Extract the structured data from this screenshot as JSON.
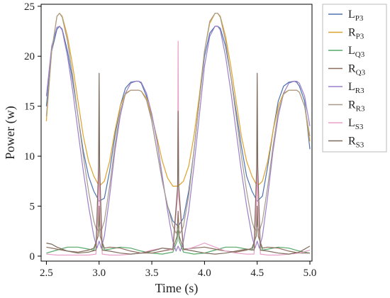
{
  "chart_data": {
    "type": "line",
    "xlabel": "Time (s)",
    "ylabel": "Power (w)",
    "xlim": [
      2.45,
      5.02
    ],
    "ylim": [
      -0.5,
      25.2
    ],
    "xticks": [
      2.5,
      3.0,
      3.5,
      4.0,
      4.5,
      5.0
    ],
    "xtick_labels": [
      "2.5",
      "3.0",
      "3.5",
      "4.0",
      "4.5",
      "5.0"
    ],
    "yticks": [
      0,
      5,
      10,
      15,
      20,
      25
    ],
    "ytick_labels": [
      "0",
      "5",
      "10",
      "15",
      "20",
      "25"
    ],
    "grid": false,
    "legend_position": "right",
    "series": [
      {
        "name": "L",
        "sub": "P3",
        "color": "#4c72b0",
        "x": [
          2.5,
          2.55,
          2.6,
          2.625,
          2.65,
          2.7,
          2.75,
          2.8,
          2.85,
          2.9,
          2.95,
          3.0,
          3.05,
          3.1,
          3.15,
          3.2,
          3.25,
          3.3,
          3.35,
          3.375,
          3.4,
          3.45,
          3.5,
          3.55,
          3.6,
          3.65,
          3.7,
          3.75,
          3.8,
          3.85,
          3.9,
          3.95,
          4.0,
          4.05,
          4.1,
          4.125,
          4.15,
          4.2,
          4.25,
          4.3,
          4.35,
          4.4,
          4.45,
          4.5,
          4.55,
          4.6,
          4.65,
          4.7,
          4.75,
          4.8,
          4.85,
          4.875,
          4.9,
          4.95,
          5.0
        ],
        "y": [
          15.0,
          20.5,
          22.7,
          23.0,
          22.7,
          20.5,
          17.5,
          14.0,
          10.5,
          8.0,
          6.5,
          5.5,
          5.8,
          8.5,
          12.0,
          15.0,
          16.8,
          17.4,
          17.5,
          17.5,
          17.3,
          16.0,
          13.5,
          10.5,
          7.5,
          5.0,
          3.5,
          3.0,
          3.8,
          6.5,
          10.5,
          15.5,
          20.0,
          22.3,
          23.0,
          23.0,
          22.8,
          21.0,
          18.0,
          14.5,
          11.0,
          8.0,
          6.5,
          5.5,
          6.0,
          9.0,
          12.5,
          15.5,
          17.0,
          17.4,
          17.5,
          17.4,
          17.0,
          15.5,
          10.7
        ]
      },
      {
        "name": "R",
        "sub": "P3",
        "color": "#dda22c",
        "x": [
          2.5,
          2.55,
          2.6,
          2.625,
          2.65,
          2.7,
          2.75,
          2.8,
          2.85,
          2.9,
          2.95,
          3.0,
          3.05,
          3.1,
          3.15,
          3.2,
          3.25,
          3.3,
          3.35,
          3.375,
          3.4,
          3.45,
          3.5,
          3.55,
          3.6,
          3.65,
          3.7,
          3.75,
          3.8,
          3.85,
          3.9,
          3.95,
          4.0,
          4.05,
          4.1,
          4.125,
          4.15,
          4.2,
          4.25,
          4.3,
          4.35,
          4.4,
          4.45,
          4.5,
          4.55,
          4.6,
          4.65,
          4.7,
          4.75,
          4.8,
          4.85,
          4.875,
          4.9,
          4.95,
          5.0
        ],
        "y": [
          13.5,
          20.5,
          24.0,
          24.3,
          24.0,
          22.0,
          19.0,
          15.5,
          12.0,
          9.5,
          8.0,
          7.0,
          7.5,
          9.5,
          12.5,
          15.0,
          16.3,
          16.6,
          16.6,
          16.6,
          16.5,
          15.8,
          14.0,
          11.8,
          9.5,
          7.8,
          7.0,
          7.0,
          7.5,
          9.0,
          12.0,
          16.0,
          20.5,
          23.3,
          24.3,
          24.3,
          24.0,
          22.0,
          19.0,
          15.5,
          12.0,
          9.5,
          8.0,
          7.0,
          7.5,
          9.5,
          12.5,
          15.0,
          16.3,
          16.6,
          16.6,
          16.6,
          16.4,
          15.0,
          11.5
        ]
      },
      {
        "name": "L",
        "sub": "Q3",
        "color": "#55a868",
        "x": [
          2.5,
          2.6,
          2.7,
          2.8,
          2.9,
          2.95,
          2.99,
          3.0,
          3.01,
          3.05,
          3.1,
          3.2,
          3.3,
          3.4,
          3.5,
          3.6,
          3.7,
          3.74,
          3.75,
          3.76,
          3.8,
          3.9,
          4.0,
          4.1,
          4.2,
          4.3,
          4.4,
          4.45,
          4.49,
          4.5,
          4.51,
          4.55,
          4.6,
          4.7,
          4.8,
          4.9,
          5.0
        ],
        "y": [
          0.3,
          0.6,
          0.9,
          0.9,
          0.7,
          0.6,
          2.0,
          4.0,
          2.0,
          0.6,
          0.7,
          0.9,
          0.8,
          0.5,
          0.3,
          0.2,
          0.4,
          1.5,
          3.0,
          1.5,
          0.4,
          0.2,
          0.3,
          0.6,
          0.9,
          0.9,
          0.7,
          0.6,
          2.0,
          4.0,
          2.0,
          0.6,
          0.7,
          0.9,
          0.8,
          0.5,
          0.3
        ]
      },
      {
        "name": "R",
        "sub": "Q3",
        "color": "#8c6d5c",
        "x": [
          2.5,
          2.6,
          2.7,
          2.8,
          2.9,
          2.95,
          2.99,
          3.0,
          3.01,
          3.05,
          3.1,
          3.2,
          3.3,
          3.4,
          3.5,
          3.6,
          3.7,
          3.74,
          3.75,
          3.76,
          3.8,
          3.9,
          4.0,
          4.1,
          4.2,
          4.3,
          4.4,
          4.45,
          4.49,
          4.5,
          4.51,
          4.55,
          4.6,
          4.7,
          4.8,
          4.9,
          5.0
        ],
        "y": [
          0.9,
          0.7,
          0.5,
          0.4,
          0.6,
          0.8,
          2.0,
          5.0,
          2.0,
          0.8,
          0.9,
          0.8,
          0.5,
          0.3,
          0.3,
          0.5,
          0.7,
          2.0,
          4.5,
          2.0,
          0.7,
          0.8,
          0.9,
          0.7,
          0.5,
          0.4,
          0.6,
          0.8,
          2.0,
          5.0,
          2.0,
          0.8,
          0.9,
          0.8,
          0.5,
          0.3,
          0.3
        ]
      },
      {
        "name": "L",
        "sub": "R3",
        "color": "#9b7fc8",
        "x": [
          2.5,
          2.55,
          2.6,
          2.625,
          2.65,
          2.7,
          2.75,
          2.8,
          2.85,
          2.9,
          2.95,
          2.98,
          3.0,
          3.02,
          3.05,
          3.1,
          3.15,
          3.2,
          3.25,
          3.3,
          3.35,
          3.375,
          3.4,
          3.45,
          3.5,
          3.55,
          3.6,
          3.65,
          3.7,
          3.73,
          3.75,
          3.77,
          3.8,
          3.85,
          3.9,
          3.95,
          4.0,
          4.05,
          4.1,
          4.125,
          4.15,
          4.2,
          4.25,
          4.3,
          4.35,
          4.4,
          4.45,
          4.48,
          4.5,
          4.52,
          4.55,
          4.6,
          4.65,
          4.7,
          4.75,
          4.8,
          4.85,
          4.875,
          4.9,
          4.95,
          5.0
        ],
        "y": [
          16.0,
          21.0,
          22.9,
          23.0,
          22.6,
          20.0,
          16.5,
          12.5,
          8.5,
          5.0,
          2.0,
          0.8,
          1.5,
          0.8,
          2.0,
          6.0,
          10.5,
          14.0,
          16.3,
          17.3,
          17.5,
          17.5,
          17.4,
          16.3,
          14.2,
          11.5,
          8.0,
          4.5,
          1.5,
          0.5,
          1.0,
          0.5,
          1.5,
          4.5,
          9.0,
          14.0,
          19.0,
          22.0,
          23.0,
          23.0,
          22.6,
          20.0,
          16.5,
          12.5,
          8.5,
          5.0,
          2.0,
          0.8,
          1.5,
          0.8,
          2.0,
          6.0,
          10.5,
          14.0,
          16.3,
          17.3,
          17.5,
          17.5,
          17.3,
          16.0,
          13.0
        ]
      },
      {
        "name": "R",
        "sub": "R3",
        "color": "#a89b8c",
        "x": [
          2.5,
          2.55,
          2.6,
          2.625,
          2.65,
          2.7,
          2.75,
          2.8,
          2.85,
          2.9,
          2.95,
          2.98,
          3.0,
          3.02,
          3.05,
          3.1,
          3.15,
          3.2,
          3.25,
          3.3,
          3.35,
          3.375,
          3.4,
          3.45,
          3.5,
          3.55,
          3.6,
          3.65,
          3.7,
          3.73,
          3.75,
          3.77,
          3.8,
          3.85,
          3.9,
          3.95,
          4.0,
          4.05,
          4.1,
          4.125,
          4.15,
          4.2,
          4.25,
          4.3,
          4.35,
          4.4,
          4.45,
          4.48,
          4.5,
          4.52,
          4.55,
          4.6,
          4.65,
          4.7,
          4.75,
          4.8,
          4.85,
          4.875,
          4.9,
          4.95,
          5.0
        ],
        "y": [
          14.0,
          20.5,
          24.0,
          24.3,
          23.9,
          21.5,
          18.0,
          14.0,
          10.0,
          6.5,
          3.5,
          2.5,
          3.0,
          2.5,
          3.5,
          7.0,
          11.0,
          14.5,
          16.2,
          16.6,
          16.6,
          16.6,
          16.5,
          15.6,
          13.5,
          10.5,
          7.5,
          5.0,
          3.0,
          2.3,
          2.8,
          2.3,
          3.0,
          6.0,
          10.5,
          15.5,
          20.5,
          23.5,
          24.3,
          24.3,
          23.9,
          21.5,
          18.0,
          14.0,
          10.0,
          6.5,
          3.5,
          2.5,
          3.0,
          2.5,
          3.5,
          7.0,
          11.0,
          14.5,
          16.2,
          16.6,
          16.6,
          16.6,
          16.4,
          15.0,
          12.0
        ]
      },
      {
        "name": "L",
        "sub": "S3",
        "color": "#e8a0c8",
        "x": [
          2.5,
          2.6,
          2.7,
          2.8,
          2.9,
          2.97,
          2.995,
          3.0,
          3.005,
          3.03,
          3.1,
          3.2,
          3.3,
          3.4,
          3.5,
          3.6,
          3.7,
          3.745,
          3.75,
          3.755,
          3.8,
          3.9,
          4.0,
          4.1,
          4.2,
          4.3,
          4.4,
          4.47,
          4.495,
          4.5,
          4.505,
          4.53,
          4.6,
          4.7,
          4.8,
          4.9,
          5.0
        ],
        "y": [
          0.2,
          0.1,
          0.1,
          0.1,
          0.1,
          0.2,
          6.0,
          12.0,
          6.0,
          0.2,
          0.1,
          0.1,
          0.2,
          0.3,
          0.6,
          0.8,
          0.6,
          6.0,
          21.5,
          6.0,
          0.6,
          0.9,
          1.3,
          0.9,
          0.5,
          0.3,
          0.2,
          0.2,
          6.0,
          12.0,
          6.0,
          0.2,
          0.1,
          0.1,
          0.2,
          0.3,
          0.6
        ]
      },
      {
        "name": "R",
        "sub": "S3",
        "color": "#7c6b5b",
        "x": [
          2.5,
          2.55,
          2.6,
          2.7,
          2.8,
          2.9,
          2.97,
          2.995,
          3.0,
          3.005,
          3.03,
          3.1,
          3.2,
          3.3,
          3.4,
          3.5,
          3.6,
          3.7,
          3.745,
          3.75,
          3.755,
          3.8,
          3.9,
          4.0,
          4.1,
          4.2,
          4.3,
          4.4,
          4.47,
          4.495,
          4.5,
          4.505,
          4.53,
          4.6,
          4.7,
          4.8,
          4.9,
          5.0
        ],
        "y": [
          1.3,
          1.2,
          0.9,
          0.5,
          0.3,
          0.4,
          0.6,
          9.0,
          18.3,
          9.0,
          0.6,
          0.5,
          0.3,
          0.2,
          0.3,
          0.5,
          0.8,
          0.7,
          7.0,
          14.5,
          7.0,
          0.7,
          0.5,
          0.3,
          0.2,
          0.3,
          0.5,
          0.7,
          0.6,
          9.0,
          18.3,
          9.0,
          0.6,
          0.5,
          0.3,
          0.2,
          0.4,
          1.0
        ]
      }
    ]
  }
}
